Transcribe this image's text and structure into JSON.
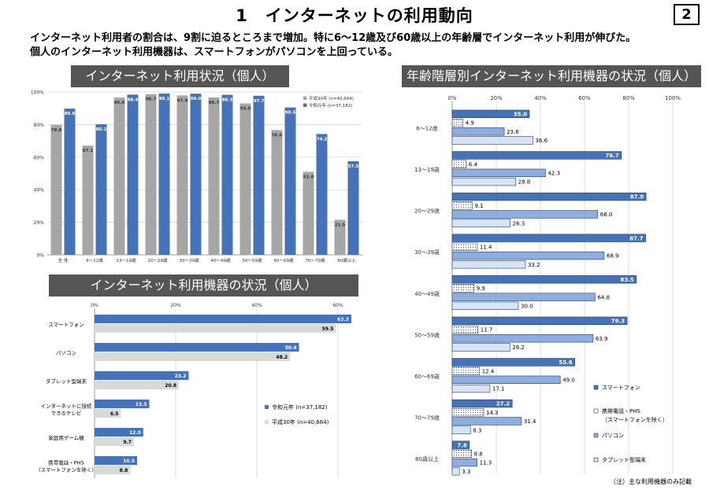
{
  "page": {
    "title": "1　インターネットの利用動向",
    "page_number": "2",
    "summary_line1": "インターネット利用者の割合は、9割に迫るところまで増加。特に6～12歳及び60歳以上の年齢層でインターネット利用が伸びた。",
    "summary_line2": "個人のインターネット利用機器は、スマートフォンがパソコンを上回っている。",
    "footnote": "（注）主な利用機器のみ記載"
  },
  "colors": {
    "reiwa_blue": "#4673b8",
    "heisei_gray": "#a6a6a6",
    "band_gray": "#555555",
    "smartphone": "#4673b8",
    "pc": "#8eaee0",
    "tablet": "#d7e4f5"
  },
  "chart_data": [
    {
      "id": "usage_status",
      "type": "bar",
      "title": "インターネット利用状況（個人）",
      "categories": [
        "全 体",
        "6～12歳",
        "13～19歳",
        "20～29歳",
        "30～39歳",
        "40～49歳",
        "50～59歳",
        "60～69歳",
        "70～79歳",
        "80歳以上"
      ],
      "series": [
        {
          "name": "平成30年 (n=40,664)",
          "color": "#a6a6a6",
          "values": [
            79.8,
            67.1,
            96.6,
            98.7,
            97.9,
            96.7,
            93.0,
            76.6,
            51.0,
            21.5
          ]
        },
        {
          "name": "令和元年 (n=37,182)",
          "color": "#4673b8",
          "values": [
            89.8,
            80.2,
            98.4,
            99.1,
            99.0,
            98.3,
            97.7,
            90.5,
            74.2,
            57.5
          ]
        }
      ],
      "ylim": [
        0,
        100
      ],
      "yticks": [
        "0%",
        "20%",
        "40%",
        "60%",
        "80%",
        "100%"
      ],
      "grid": true,
      "legend_position": "top-right"
    },
    {
      "id": "devices",
      "type": "bar",
      "orientation": "horizontal",
      "title": "インターネット利用機器の状況（個人）",
      "categories": [
        "スマートフォン",
        "パソコン",
        "タブレット型端末",
        "インターネットに接続できるテレビ",
        "家庭用ゲーム機",
        "携帯電話・PHS（スマートフォンを除く）"
      ],
      "category_lines": [
        [
          "スマートフォン"
        ],
        [
          "パソコン"
        ],
        [
          "タブレット型端末"
        ],
        [
          "インターネットに接続",
          "できるテレビ"
        ],
        [
          "家庭用ゲーム機"
        ],
        [
          "携帯電話・PHS",
          "（スマートフォンを除く）"
        ]
      ],
      "series": [
        {
          "name": "令和元年 (n=37,182)",
          "color": "#4673b8",
          "values": [
            63.3,
            50.4,
            23.2,
            13.5,
            12.0,
            10.5
          ]
        },
        {
          "name": "平成30年 (n=40,664)",
          "color": "#d9d9d9",
          "values": [
            59.5,
            48.2,
            20.8,
            6.5,
            9.7,
            8.8
          ]
        }
      ],
      "xlim": [
        0,
        70
      ],
      "xticks": [
        "0%",
        "20%",
        "40%",
        "60%"
      ],
      "legend_position": "right"
    },
    {
      "id": "devices_by_age",
      "type": "bar",
      "orientation": "horizontal",
      "title": "年齢階層別インターネット利用機器の状況（個人）",
      "categories": [
        "6～12歳",
        "13～19歳",
        "20～29歳",
        "30～39歳",
        "40～49歳",
        "50～59歳",
        "60～69歳",
        "70～79歳",
        "80歳以上"
      ],
      "series": [
        {
          "name": "スマートフォン",
          "color": "#4673b8",
          "values": [
            35.0,
            76.7,
            87.9,
            87.7,
            83.5,
            79.3,
            55.6,
            27.2,
            7.8
          ]
        },
        {
          "name": "携帯電話・PHS（スマートフォンを除く）",
          "legend_lines": [
            "携帯電話・PHS",
            "（スマートフォンを除く）"
          ],
          "color": "#ffffff",
          "pattern": "dotted",
          "values": [
            4.9,
            6.4,
            9.1,
            11.4,
            9.9,
            11.7,
            12.4,
            14.3,
            8.8
          ]
        },
        {
          "name": "パソコン",
          "color": "#8eaee0",
          "values": [
            23.6,
            42.3,
            66.0,
            68.9,
            64.8,
            63.9,
            49.0,
            31.4,
            11.3
          ]
        },
        {
          "name": "タブレット型端末",
          "color": "#d7e4f5",
          "values": [
            36.6,
            28.8,
            26.3,
            33.2,
            30.0,
            26.2,
            17.1,
            8.3,
            3.3
          ]
        }
      ],
      "xlim": [
        0,
        100
      ],
      "xticks": [
        "0%",
        "20%",
        "40%",
        "60%",
        "80%",
        "100%"
      ],
      "legend_position": "right"
    }
  ]
}
